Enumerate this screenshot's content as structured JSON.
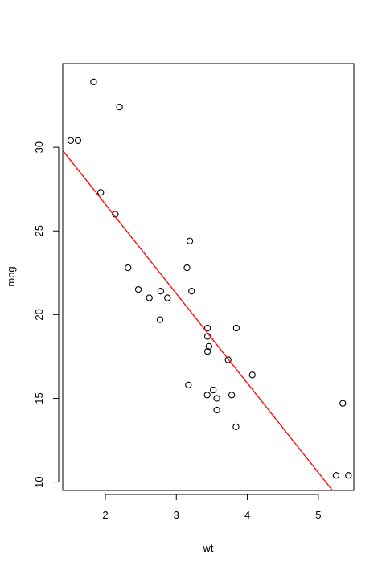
{
  "chart_data": {
    "type": "scatter",
    "xlabel": "wt",
    "ylabel": "mpg",
    "xlim": [
      1.4,
      5.5
    ],
    "ylim": [
      9.5,
      35.0
    ],
    "xticks": [
      "2",
      "3",
      "4",
      "5"
    ],
    "yticks": [
      "10",
      "15",
      "20",
      "25",
      "30"
    ],
    "grid": false,
    "series": [
      {
        "points": [
          {
            "x": 2.62,
            "y": 21.0
          },
          {
            "x": 2.875,
            "y": 21.0
          },
          {
            "x": 2.32,
            "y": 22.8
          },
          {
            "x": 3.215,
            "y": 21.4
          },
          {
            "x": 3.44,
            "y": 18.7
          },
          {
            "x": 3.46,
            "y": 18.1
          },
          {
            "x": 3.57,
            "y": 14.3
          },
          {
            "x": 3.19,
            "y": 24.4
          },
          {
            "x": 3.15,
            "y": 22.8
          },
          {
            "x": 3.44,
            "y": 19.2
          },
          {
            "x": 3.44,
            "y": 17.8
          },
          {
            "x": 4.07,
            "y": 16.4
          },
          {
            "x": 3.73,
            "y": 17.3
          },
          {
            "x": 3.78,
            "y": 15.2
          },
          {
            "x": 5.25,
            "y": 10.4
          },
          {
            "x": 5.424,
            "y": 10.4
          },
          {
            "x": 5.345,
            "y": 14.7
          },
          {
            "x": 2.2,
            "y": 32.4
          },
          {
            "x": 1.615,
            "y": 30.4
          },
          {
            "x": 1.835,
            "y": 33.9
          },
          {
            "x": 2.465,
            "y": 21.5
          },
          {
            "x": 3.52,
            "y": 15.5
          },
          {
            "x": 3.435,
            "y": 15.2
          },
          {
            "x": 3.84,
            "y": 13.3
          },
          {
            "x": 3.845,
            "y": 19.2
          },
          {
            "x": 1.935,
            "y": 27.3
          },
          {
            "x": 2.14,
            "y": 26.0
          },
          {
            "x": 1.513,
            "y": 30.4
          },
          {
            "x": 3.17,
            "y": 15.8
          },
          {
            "x": 2.77,
            "y": 19.7
          },
          {
            "x": 3.57,
            "y": 15.0
          },
          {
            "x": 2.78,
            "y": 21.4
          }
        ],
        "color": "#000000"
      }
    ],
    "regression_line": {
      "intercept": 37.285,
      "slope": -5.344,
      "color": "#ff0000"
    }
  }
}
